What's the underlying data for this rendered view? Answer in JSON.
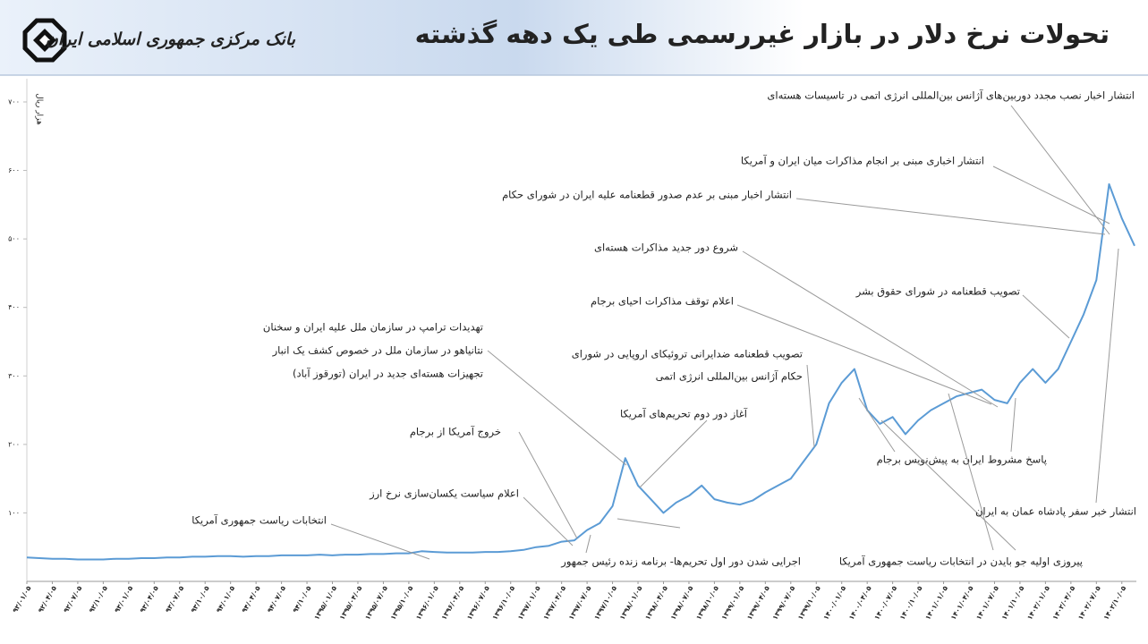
{
  "header": {
    "bank_name": "بانک مرکزی جمهوری اسلامی ایران"
  },
  "chart_data": {
    "type": "line",
    "title": "تحولات نرخ دلار در بازار غیررسمی طی یک دهه گذشته",
    "y_label": "هزار ریال",
    "color": "#5b9bd5",
    "ylim": [
      0,
      730
    ],
    "yticks": [
      {
        "value": 100,
        "label": "۱۰۰"
      },
      {
        "value": 200,
        "label": "۲۰۰"
      },
      {
        "value": 300,
        "label": "۳۰۰"
      },
      {
        "value": 400,
        "label": "۴۰۰"
      },
      {
        "value": 500,
        "label": "۵۰۰"
      },
      {
        "value": 600,
        "label": "۶۰۰"
      },
      {
        "value": 700,
        "label": "۷۰۰"
      }
    ],
    "categories": [
      "۹۲/۰۱/۰۵",
      null,
      "۹۲/۰۴/۰۵",
      null,
      "۹۲/۰۷/۰۵",
      null,
      "۹۲/۱۰/۰۵",
      null,
      "۹۳/۰۱/۰۵",
      null,
      "۹۳/۰۴/۰۵",
      null,
      "۹۳/۰۷/۰۵",
      null,
      "۹۳/۱۰/۰۵",
      null,
      "۹۴/۰۱/۰۵",
      null,
      "۹۴/۰۴/۰۵",
      null,
      "۹۴/۰۷/۰۵",
      null,
      "۹۴/۱۰/۰۵",
      null,
      "۱۳۹۵/۰۱/۰۵",
      null,
      "۱۳۹۵/۰۴/۰۵",
      null,
      "۱۳۹۵/۰۷/۰۵",
      null,
      "۱۳۹۵/۱۰/۰۵",
      null,
      "۱۳۹۶/۰۱/۰۵",
      null,
      "۱۳۹۶/۰۴/۰۵",
      null,
      "۱۳۹۶/۰۷/۰۵",
      null,
      "۱۳۹۶/۱۰/۰۵",
      null,
      "۱۳۹۷/۰۱/۰۵",
      null,
      "۱۳۹۷/۰۴/۰۵",
      null,
      "۱۳۹۷/۰۷/۰۵",
      null,
      "۱۳۹۷/۱۰/۰۵",
      null,
      "۱۳۹۸/۰۱/۰۵",
      null,
      "۱۳۹۸/۰۴/۰۵",
      null,
      "۱۳۹۸/۰۷/۰۵",
      null,
      "۱۳۹۸/۱۰/۰۵",
      null,
      "۱۳۹۹/۰۱/۰۵",
      null,
      "۱۳۹۹/۰۴/۰۵",
      null,
      "۱۳۹۹/۰۷/۰۵",
      null,
      "۱۳۹۹/۱۰/۰۵",
      null,
      "۱۴۰۰/۰۱/۰۵",
      null,
      "۱۴۰۰/۰۴/۰۵",
      null,
      "۱۴۰۰/۰۷/۰۵",
      null,
      "۱۴۰۰/۱۰/۰۵",
      null,
      "۱۴۰۱/۰۱/۰۵",
      null,
      "۱۴۰۱/۰۴/۰۵",
      null,
      "۱۴۰۱/۰۷/۰۵",
      null,
      "۱۴۰۱/۱۰/۰۵",
      null,
      "۱۴۰۲/۰۱/۰۵",
      null,
      "۱۴۰۲/۰۴/۰۵",
      null,
      "۱۴۰۲/۰۷/۰۵",
      null,
      "۱۴۰۲/۱۰/۰۵",
      null
    ],
    "values": [
      35,
      34,
      33,
      33,
      32,
      32,
      32,
      33,
      33,
      34,
      34,
      35,
      35,
      36,
      36,
      37,
      37,
      36,
      37,
      37,
      38,
      38,
      38,
      39,
      38,
      39,
      39,
      40,
      40,
      41,
      41,
      44,
      43,
      42,
      42,
      42,
      43,
      43,
      44,
      46,
      50,
      52,
      58,
      60,
      75,
      85,
      110,
      180,
      140,
      120,
      100,
      115,
      125,
      140,
      120,
      115,
      112,
      118,
      130,
      140,
      150,
      175,
      200,
      260,
      290,
      310,
      250,
      230,
      240,
      215,
      235,
      250,
      260,
      270,
      275,
      280,
      265,
      260,
      290,
      310,
      290,
      310,
      350,
      390,
      440,
      580,
      530,
      490
    ],
    "annotations": [
      {
        "lines": [
          "انتشار اخبار نصب مجدد دوربین‌های آژانس بین‌المللی انرژی اتمی در تاسیسات هسته‌ای"
        ]
      },
      {
        "lines": [
          "انتشار اخباری مبنی بر انجام مذاکرات میان ایران و آمریکا"
        ]
      },
      {
        "lines": [
          "انتشار اخبار مبنی بر عدم صدور قطعنامه علیه ایران در  شورای حکام"
        ]
      },
      {
        "lines": [
          "شروع دور جدید مذاکرات هسته‌ای"
        ]
      },
      {
        "lines": [
          "اعلام توقف مذاکرات احیای برجام"
        ]
      },
      {
        "lines": [
          "تصویب قطعنامه ضدایرانی تروئیکای اروپایی در شورای",
          "حکام آژانس بین‌المللی انرژی اتمی"
        ]
      },
      {
        "lines": [
          "تصویب قطعنامه در شورای حقوق بشر"
        ]
      },
      {
        "lines": [
          "تهدیدات ترامپ در سازمان ملل علیه ایران و سخنان",
          "نتانیاهو در سازمان ملل در خصوص کشف یک انبار",
          "تجهیزات هسته‌ای جدید در ایران (تورقوز آباد)"
        ]
      },
      {
        "lines": [
          "آغاز دور دوم تحریم‌های آمریکا"
        ]
      },
      {
        "lines": [
          "خروج آمریکا از برجام"
        ]
      },
      {
        "lines": [
          "اعلام سیاست یکسان‌سازی نرخ ارز"
        ]
      },
      {
        "lines": [
          "انتخابات ریاست جمهوری آمریکا"
        ]
      },
      {
        "lines": [
          "اجرایی شدن دور اول تحریم‌ها- برنامه زنده رئیس جمهور"
        ]
      },
      {
        "lines": [
          "پاسخ مشروط ایران به پیش‌نویس برجام"
        ]
      },
      {
        "lines": [
          "پیروزی اولیه جو بایدن در انتخابات ریاست جمهوری آمریکا"
        ]
      },
      {
        "lines": [
          "انتشار خبر  سفر پادشاه عمان به ایران"
        ]
      }
    ]
  }
}
